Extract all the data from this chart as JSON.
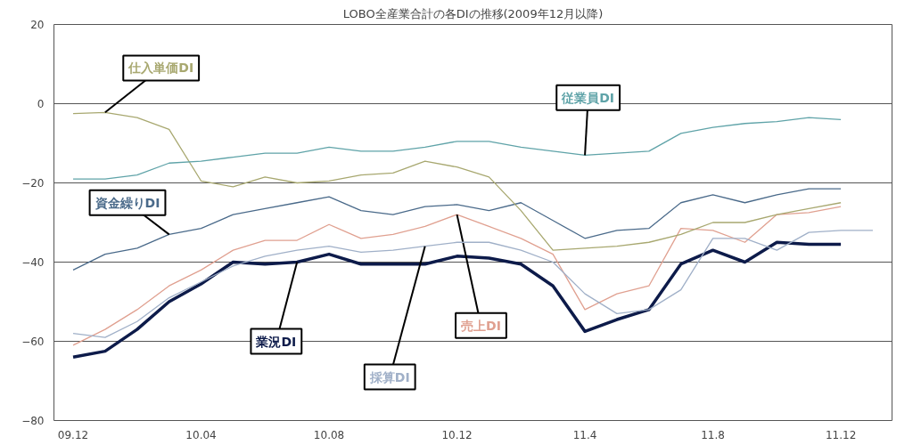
{
  "chart_data": {
    "type": "line",
    "title": "LOBO全産業合計の各DIの推移(2009年12月以降)",
    "categories": [
      "09.12",
      null,
      null,
      null,
      "10.04",
      null,
      null,
      null,
      "10.08",
      null,
      null,
      null,
      "10.12",
      null,
      null,
      null,
      "11.4",
      null,
      null,
      null,
      "11.8",
      null,
      null,
      null,
      "11.12",
      null
    ],
    "ylim": [
      -80,
      20
    ],
    "yticks": [
      -80,
      -60,
      -40,
      -20,
      0,
      20
    ],
    "grid": "y",
    "marker": "none",
    "line_style": "solid",
    "series": [
      {
        "name": "業況DI",
        "color": "#0d1b4a",
        "values": [
          -64,
          -62.5,
          -57,
          -50,
          -45.5,
          -40,
          -40.5,
          -40,
          -38,
          -40.5,
          -40.5,
          -40.5,
          -38.5,
          -39,
          -40.5,
          -46,
          -57.5,
          -54.5,
          -52,
          -40.5,
          -37,
          -40,
          -35,
          -35.5,
          -35.5,
          null
        ]
      },
      {
        "name": "売上DI",
        "color": "#e0a090",
        "values": [
          -61,
          -57,
          -52,
          -46,
          -42,
          -37,
          -34.5,
          -34.5,
          -30.5,
          -34,
          -33,
          -31,
          -28,
          -31,
          -34,
          -38,
          -52,
          -48,
          -46,
          -31.5,
          -32,
          -35,
          -28,
          -27.5,
          -26,
          null
        ]
      },
      {
        "name": "採算DI",
        "color": "#a0b0c8",
        "values": [
          -58,
          -59,
          -55,
          -49,
          -45,
          -41,
          -38.5,
          -37,
          -36,
          -37.5,
          -37,
          -36,
          -35,
          -35,
          -37,
          -40,
          -48,
          -53,
          -52,
          -47,
          -34,
          -34,
          -37,
          -32.5,
          -32,
          -32
        ]
      },
      {
        "name": "資金繰りDI",
        "color": "#4a6a8a",
        "values": [
          -42,
          -38,
          -36.5,
          -33,
          -31.5,
          -28,
          -26.5,
          -25,
          -23.5,
          -27,
          -28,
          -26,
          -25.5,
          -27,
          -25,
          -29.5,
          -34,
          -32,
          -31.5,
          -25,
          -23,
          -25,
          -23,
          -21.5,
          -21.5,
          null
        ]
      },
      {
        "name": "仕入単価DI",
        "color": "#a8a870",
        "values": [
          -2.5,
          -2.2,
          -3.5,
          -6.5,
          -19.5,
          -21,
          -18.5,
          -20,
          -19.5,
          -18,
          -17.5,
          -14.5,
          -16,
          -18.5,
          -27,
          -37,
          -36.5,
          -36,
          -35,
          -33,
          -30,
          -30,
          -28,
          -26.5,
          -25,
          null
        ]
      },
      {
        "name": "従業員DI",
        "color": "#5fa3a8",
        "values": [
          -19,
          -19,
          -18,
          -15,
          -14.5,
          -13.5,
          -12.5,
          -12.5,
          -11,
          -12,
          -12,
          -11,
          -9.5,
          -9.5,
          -11,
          -12,
          -13,
          -12.5,
          -12,
          -7.5,
          -6,
          -5,
          -4.5,
          -3.5,
          -4,
          null
        ]
      }
    ]
  }
}
